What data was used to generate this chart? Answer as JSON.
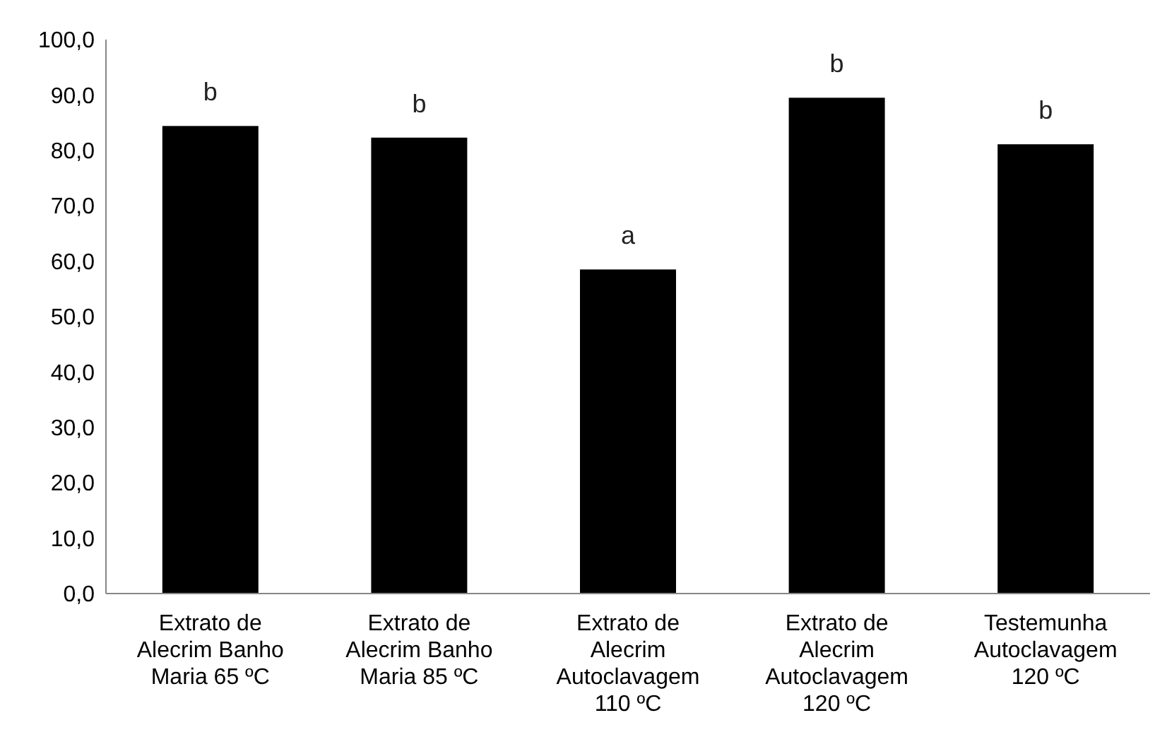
{
  "chart_data": {
    "type": "bar",
    "categories": [
      "Extrato de Alecrim Banho Maria 65 ºC",
      "Extrato de Alecrim Banho Maria 85 ºC",
      "Extrato de Alecrim Autoclavagem 110 ºC",
      "Extrato de Alecrim Autoclavagem 120 ºC",
      "Testemunha Autoclavagem 120 ºC"
    ],
    "values": [
      84.4,
      82.3,
      58.5,
      89.5,
      81.1
    ],
    "color": "#000000",
    "ylim": [
      0,
      100
    ],
    "yticks": [
      {
        "value": 0,
        "label": "0,0"
      },
      {
        "value": 10,
        "label": "10,0"
      },
      {
        "value": 20,
        "label": "20,0"
      },
      {
        "value": 30,
        "label": "30,0"
      },
      {
        "value": 40,
        "label": "40,0"
      },
      {
        "value": 50,
        "label": "50,0"
      },
      {
        "value": 60,
        "label": "60,0"
      },
      {
        "value": 70,
        "label": "70,0"
      },
      {
        "value": 80,
        "label": "80,0"
      },
      {
        "value": 90,
        "label": "90,0"
      },
      {
        "value": 100,
        "label": "100,0"
      }
    ],
    "annotations": [
      {
        "text": "b",
        "x": "Extrato de Alecrim Banho Maria 65 ºC",
        "y": 84.4
      },
      {
        "text": "b",
        "x": "Extrato de Alecrim Banho Maria 85 ºC",
        "y": 82.3
      },
      {
        "text": "a",
        "x": "Extrato de Alecrim Autoclavagem 110 ºC",
        "y": 58.5
      },
      {
        "text": "b",
        "x": "Extrato de Alecrim Autoclavagem 120 ºC",
        "y": 89.5
      },
      {
        "text": "b",
        "x": "Testemunha Autoclavagem 120 ºC",
        "y": 81.1
      }
    ]
  }
}
